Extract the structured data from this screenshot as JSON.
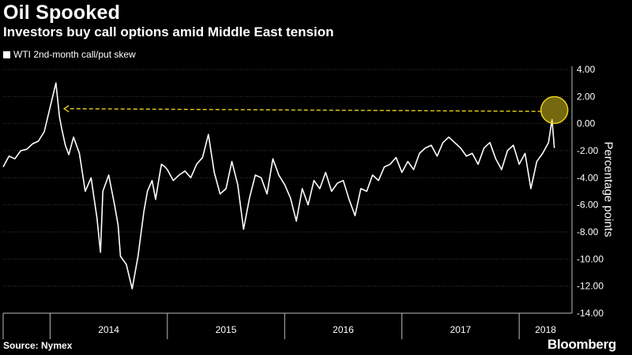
{
  "header": {
    "title": "Oil Spooked",
    "subtitle": "Investors buy call options amid Middle East tension"
  },
  "footer": {
    "source": "Source: Nymex",
    "brand": "Bloomberg"
  },
  "colors": {
    "background": "#000000",
    "line": "#ffffff",
    "annotation": "#e8d21e",
    "grid": "#3a3a3a"
  },
  "chart_data": {
    "type": "line",
    "title": "Oil Spooked",
    "subtitle": "Investors buy call options amid Middle East tension",
    "ylabel": "Percentage points",
    "xlabel": "",
    "ylim": [
      -14,
      4
    ],
    "xlim": [
      2013.6,
      2018.45
    ],
    "yticks": [
      4,
      2,
      0,
      -2,
      -4,
      -6,
      -8,
      -10,
      -12,
      -14
    ],
    "ytick_labels": [
      "4.00",
      "2.00",
      "0.00",
      "-2.00",
      "-4.00",
      "-6.00",
      "-8.00",
      "-10.00",
      "-12.00",
      "-14.00"
    ],
    "xticks": [
      "2014",
      "2015",
      "2016",
      "2017",
      "2018"
    ],
    "grid": true,
    "legend_position": "top-left",
    "series": [
      {
        "name": "WTI 2nd-month call/put skew",
        "x": [
          2013.6,
          2013.65,
          2013.7,
          2013.75,
          2013.8,
          2013.85,
          2013.9,
          2013.95,
          2014.0,
          2014.05,
          2014.08,
          2014.1,
          2014.13,
          2014.16,
          2014.2,
          2014.25,
          2014.3,
          2014.35,
          2014.4,
          2014.43,
          2014.45,
          2014.5,
          2014.55,
          2014.58,
          2014.6,
          2014.65,
          2014.7,
          2014.75,
          2014.8,
          2014.83,
          2014.87,
          2014.9,
          2014.93,
          2014.95,
          2014.98,
          2015.0,
          2015.05,
          2015.1,
          2015.15,
          2015.2,
          2015.25,
          2015.3,
          2015.35,
          2015.4,
          2015.45,
          2015.5,
          2015.55,
          2015.6,
          2015.65,
          2015.7,
          2015.75,
          2015.8,
          2015.85,
          2015.9,
          2015.95,
          2016.0,
          2016.05,
          2016.1,
          2016.15,
          2016.2,
          2016.25,
          2016.3,
          2016.35,
          2016.4,
          2016.45,
          2016.5,
          2016.55,
          2016.6,
          2016.65,
          2016.7,
          2016.75,
          2016.8,
          2016.85,
          2016.9,
          2016.95,
          2017.0,
          2017.05,
          2017.1,
          2017.15,
          2017.2,
          2017.25,
          2017.3,
          2017.35,
          2017.4,
          2017.45,
          2017.5,
          2017.55,
          2017.6,
          2017.65,
          2017.7,
          2017.75,
          2017.8,
          2017.85,
          2017.9,
          2017.95,
          2018.0,
          2018.05,
          2018.1,
          2018.15,
          2018.2,
          2018.25,
          2018.28,
          2018.3
        ],
        "values": [
          -3.2,
          -2.4,
          -2.6,
          -2.0,
          -1.9,
          -1.5,
          -1.3,
          -0.6,
          1.2,
          3.0,
          0.5,
          -0.4,
          -1.6,
          -2.3,
          -1.0,
          -2.2,
          -5.0,
          -4.0,
          -7.0,
          -9.5,
          -5.0,
          -3.8,
          -6.0,
          -7.5,
          -9.8,
          -10.4,
          -12.2,
          -9.8,
          -6.5,
          -5.0,
          -4.2,
          -5.6,
          -4.0,
          -3.0,
          -3.2,
          -3.4,
          -4.2,
          -3.8,
          -3.5,
          -4.0,
          -3.0,
          -2.5,
          -0.8,
          -3.6,
          -5.2,
          -4.8,
          -2.8,
          -4.5,
          -7.8,
          -5.5,
          -3.8,
          -4.0,
          -5.2,
          -2.6,
          -3.8,
          -4.5,
          -5.5,
          -7.2,
          -4.8,
          -6.0,
          -4.2,
          -4.8,
          -3.6,
          -5.0,
          -4.4,
          -4.2,
          -5.6,
          -6.8,
          -4.8,
          -5.0,
          -3.8,
          -4.2,
          -3.2,
          -3.0,
          -2.5,
          -3.6,
          -2.8,
          -3.4,
          -2.2,
          -1.8,
          -1.6,
          -2.4,
          -1.4,
          -1.0,
          -1.4,
          -1.8,
          -2.4,
          -2.2,
          -3.0,
          -1.8,
          -1.4,
          -2.6,
          -3.4,
          -2.0,
          -1.6,
          -3.0,
          -2.2,
          -4.8,
          -2.8,
          -2.2,
          -1.4,
          0.3,
          -1.8
        ]
      }
    ],
    "annotation": {
      "type": "dashed-arrow",
      "from": [
        2018.3,
        0.9
      ],
      "to": [
        2014.12,
        1.1
      ],
      "circle_at": [
        2018.3,
        1.0
      ]
    }
  }
}
